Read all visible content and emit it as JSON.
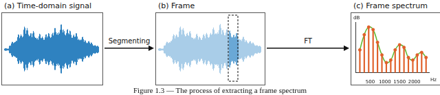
{
  "panels": [
    {
      "title": "(a) Time-domain signal"
    },
    {
      "title": "(b) Frame"
    }
  ],
  "arrows": [
    {
      "label": "Segmenting"
    },
    {
      "label": "FT"
    }
  ],
  "caption": "Figure 1.3 — The process of extracting a frame spectrum",
  "chart_data": {
    "type": "stem",
    "title": "(c) Frame spectrum",
    "x_label": "Hz",
    "y_label": "dB",
    "x": [
      150,
      300,
      450,
      600,
      750,
      900,
      1050,
      1200,
      1350,
      1500,
      1650,
      1800,
      1950,
      2100,
      2250,
      2400
    ],
    "values": [
      4.5,
      7.5,
      9,
      8.5,
      6,
      3.5,
      2,
      2.5,
      4.5,
      5.5,
      5,
      3,
      2.5,
      3.5,
      4,
      3
    ],
    "color": "#e0602a",
    "marker": "circle",
    "envelope": {
      "values": [
        4.5,
        7.5,
        9,
        8.5,
        6,
        3.5,
        2,
        2.5,
        4.5,
        5.5,
        5,
        3,
        2.5,
        3.5,
        4,
        3
      ],
      "color": "#5cb82f"
    },
    "xlim": [
      0,
      2500
    ],
    "xticks": [
      500,
      1000,
      1500,
      2000
    ],
    "ylim": [
      0,
      10
    ],
    "tick_labels": "x",
    "grid": false
  }
}
